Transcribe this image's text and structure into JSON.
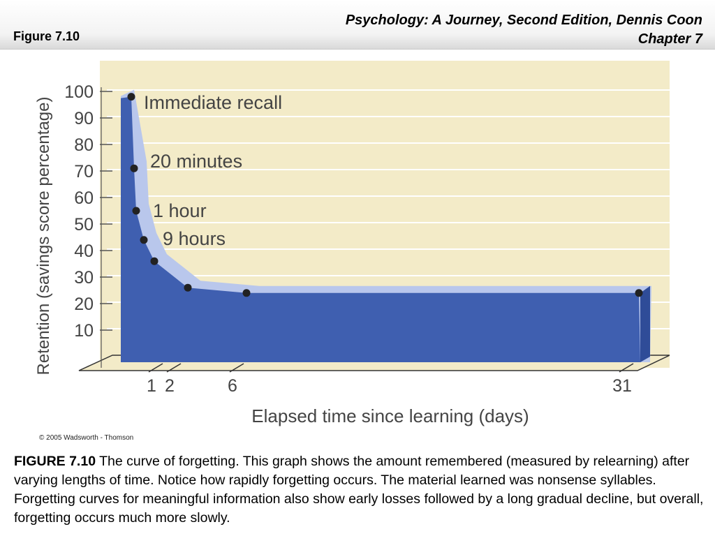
{
  "header": {
    "figure_label": "Figure 7.10",
    "book_title": "Psychology: A Journey, Second Edition, Dennis Coon",
    "chapter": "Chapter 7"
  },
  "chart_data": {
    "type": "area",
    "ylabel": "Retention (savings score percentage)",
    "xlabel": "Elapsed time since learning (days)",
    "y_ticks": [
      "100",
      "90",
      "80",
      "70",
      "60",
      "50",
      "40",
      "30",
      "20",
      "10"
    ],
    "x_ticks": [
      {
        "label": "1",
        "value": 1
      },
      {
        "label": "2",
        "value": 2
      },
      {
        "label": "6",
        "value": 6
      },
      {
        "label": "31",
        "value": 31
      }
    ],
    "ylim": [
      0,
      100
    ],
    "grid": true,
    "points": [
      {
        "time": "Immediate recall",
        "label": "Immediate recall",
        "value": 98
      },
      {
        "time": "20 minutes",
        "label": "20 minutes",
        "value": 71
      },
      {
        "time": "1 hour",
        "label": "1 hour",
        "value": 55
      },
      {
        "time": "9 hours",
        "label": "9 hours",
        "value": 44
      },
      {
        "time": "1 day",
        "label": "",
        "value": 36
      },
      {
        "time": "2 days",
        "label": "",
        "value": 26
      },
      {
        "time": "6 days",
        "label": "",
        "value": 24
      },
      {
        "time": "31 days",
        "label": "",
        "value": 24
      }
    ],
    "colors": {
      "background": "#f3ebc8",
      "grid": "#ffffff",
      "area_front": "#3f5fb0",
      "area_top": "#b9c7ec",
      "points": "#222222"
    }
  },
  "copyright": "© 2005 Wadsworth - Thomson",
  "caption": {
    "lead": "FIGURE 7.10",
    "text": " The curve of forgetting. This graph shows the amount remembered (measured by relearning) after varying lengths of time. Notice how rapidly forgetting occurs. The material learned was nonsense syllables. Forgetting curves for meaningful information also show early losses followed by a long gradual decline, but overall, forgetting occurs much more slowly."
  }
}
